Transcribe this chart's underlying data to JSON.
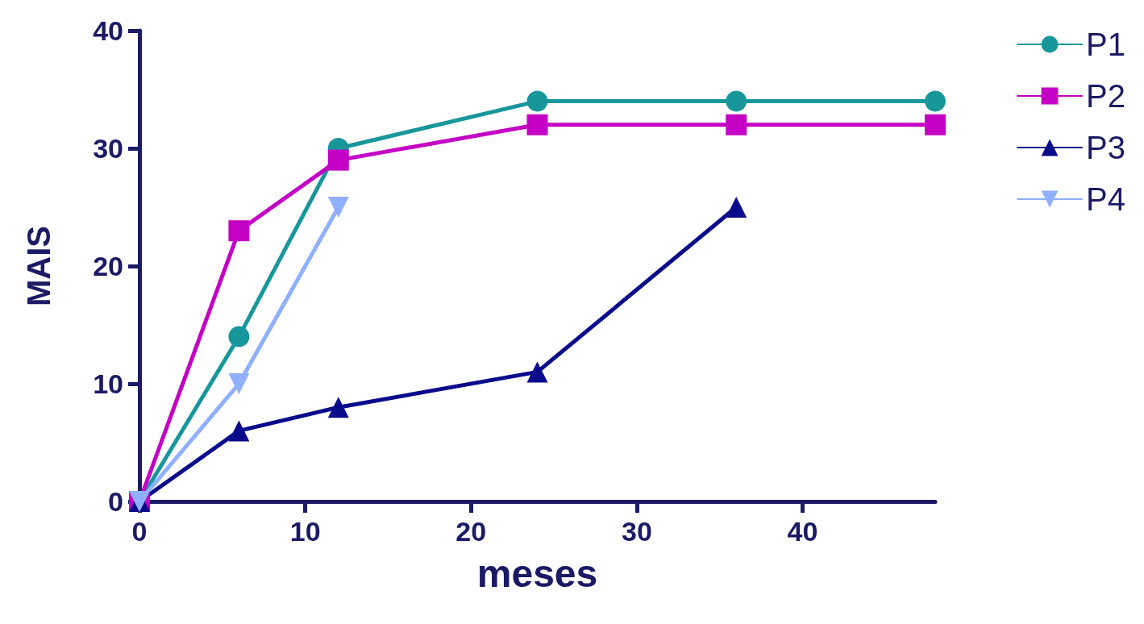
{
  "chart_data": {
    "type": "line",
    "xlabel": "meses",
    "ylabel": "MAIS",
    "xlim": [
      0,
      48
    ],
    "xticks": [
      0,
      10,
      20,
      30,
      40
    ],
    "ylim": [
      0,
      40
    ],
    "yticks": [
      0,
      10,
      20,
      30,
      40
    ],
    "grid": false,
    "legend": "top right",
    "line_style": "solid",
    "series": [
      {
        "name": "P1",
        "color": "#17979c",
        "marker": "circle",
        "x": [
          0,
          6,
          12,
          24,
          36,
          48
        ],
        "values": [
          0,
          14,
          30,
          34,
          34,
          34
        ]
      },
      {
        "name": "P2",
        "color": "#c400c4",
        "marker": "square",
        "x": [
          0,
          6,
          12,
          24,
          36,
          48
        ],
        "values": [
          0,
          23,
          29,
          32,
          32,
          32
        ]
      },
      {
        "name": "P3",
        "color": "#0a0a8c",
        "marker": "triangle",
        "x": [
          0,
          6,
          12,
          24,
          36
        ],
        "values": [
          0,
          6,
          8,
          11,
          25
        ]
      },
      {
        "name": "P4",
        "color": "#8fb0ff",
        "marker": "triangle-down",
        "x": [
          0,
          6,
          12
        ],
        "values": [
          0,
          10,
          25
        ]
      }
    ]
  }
}
